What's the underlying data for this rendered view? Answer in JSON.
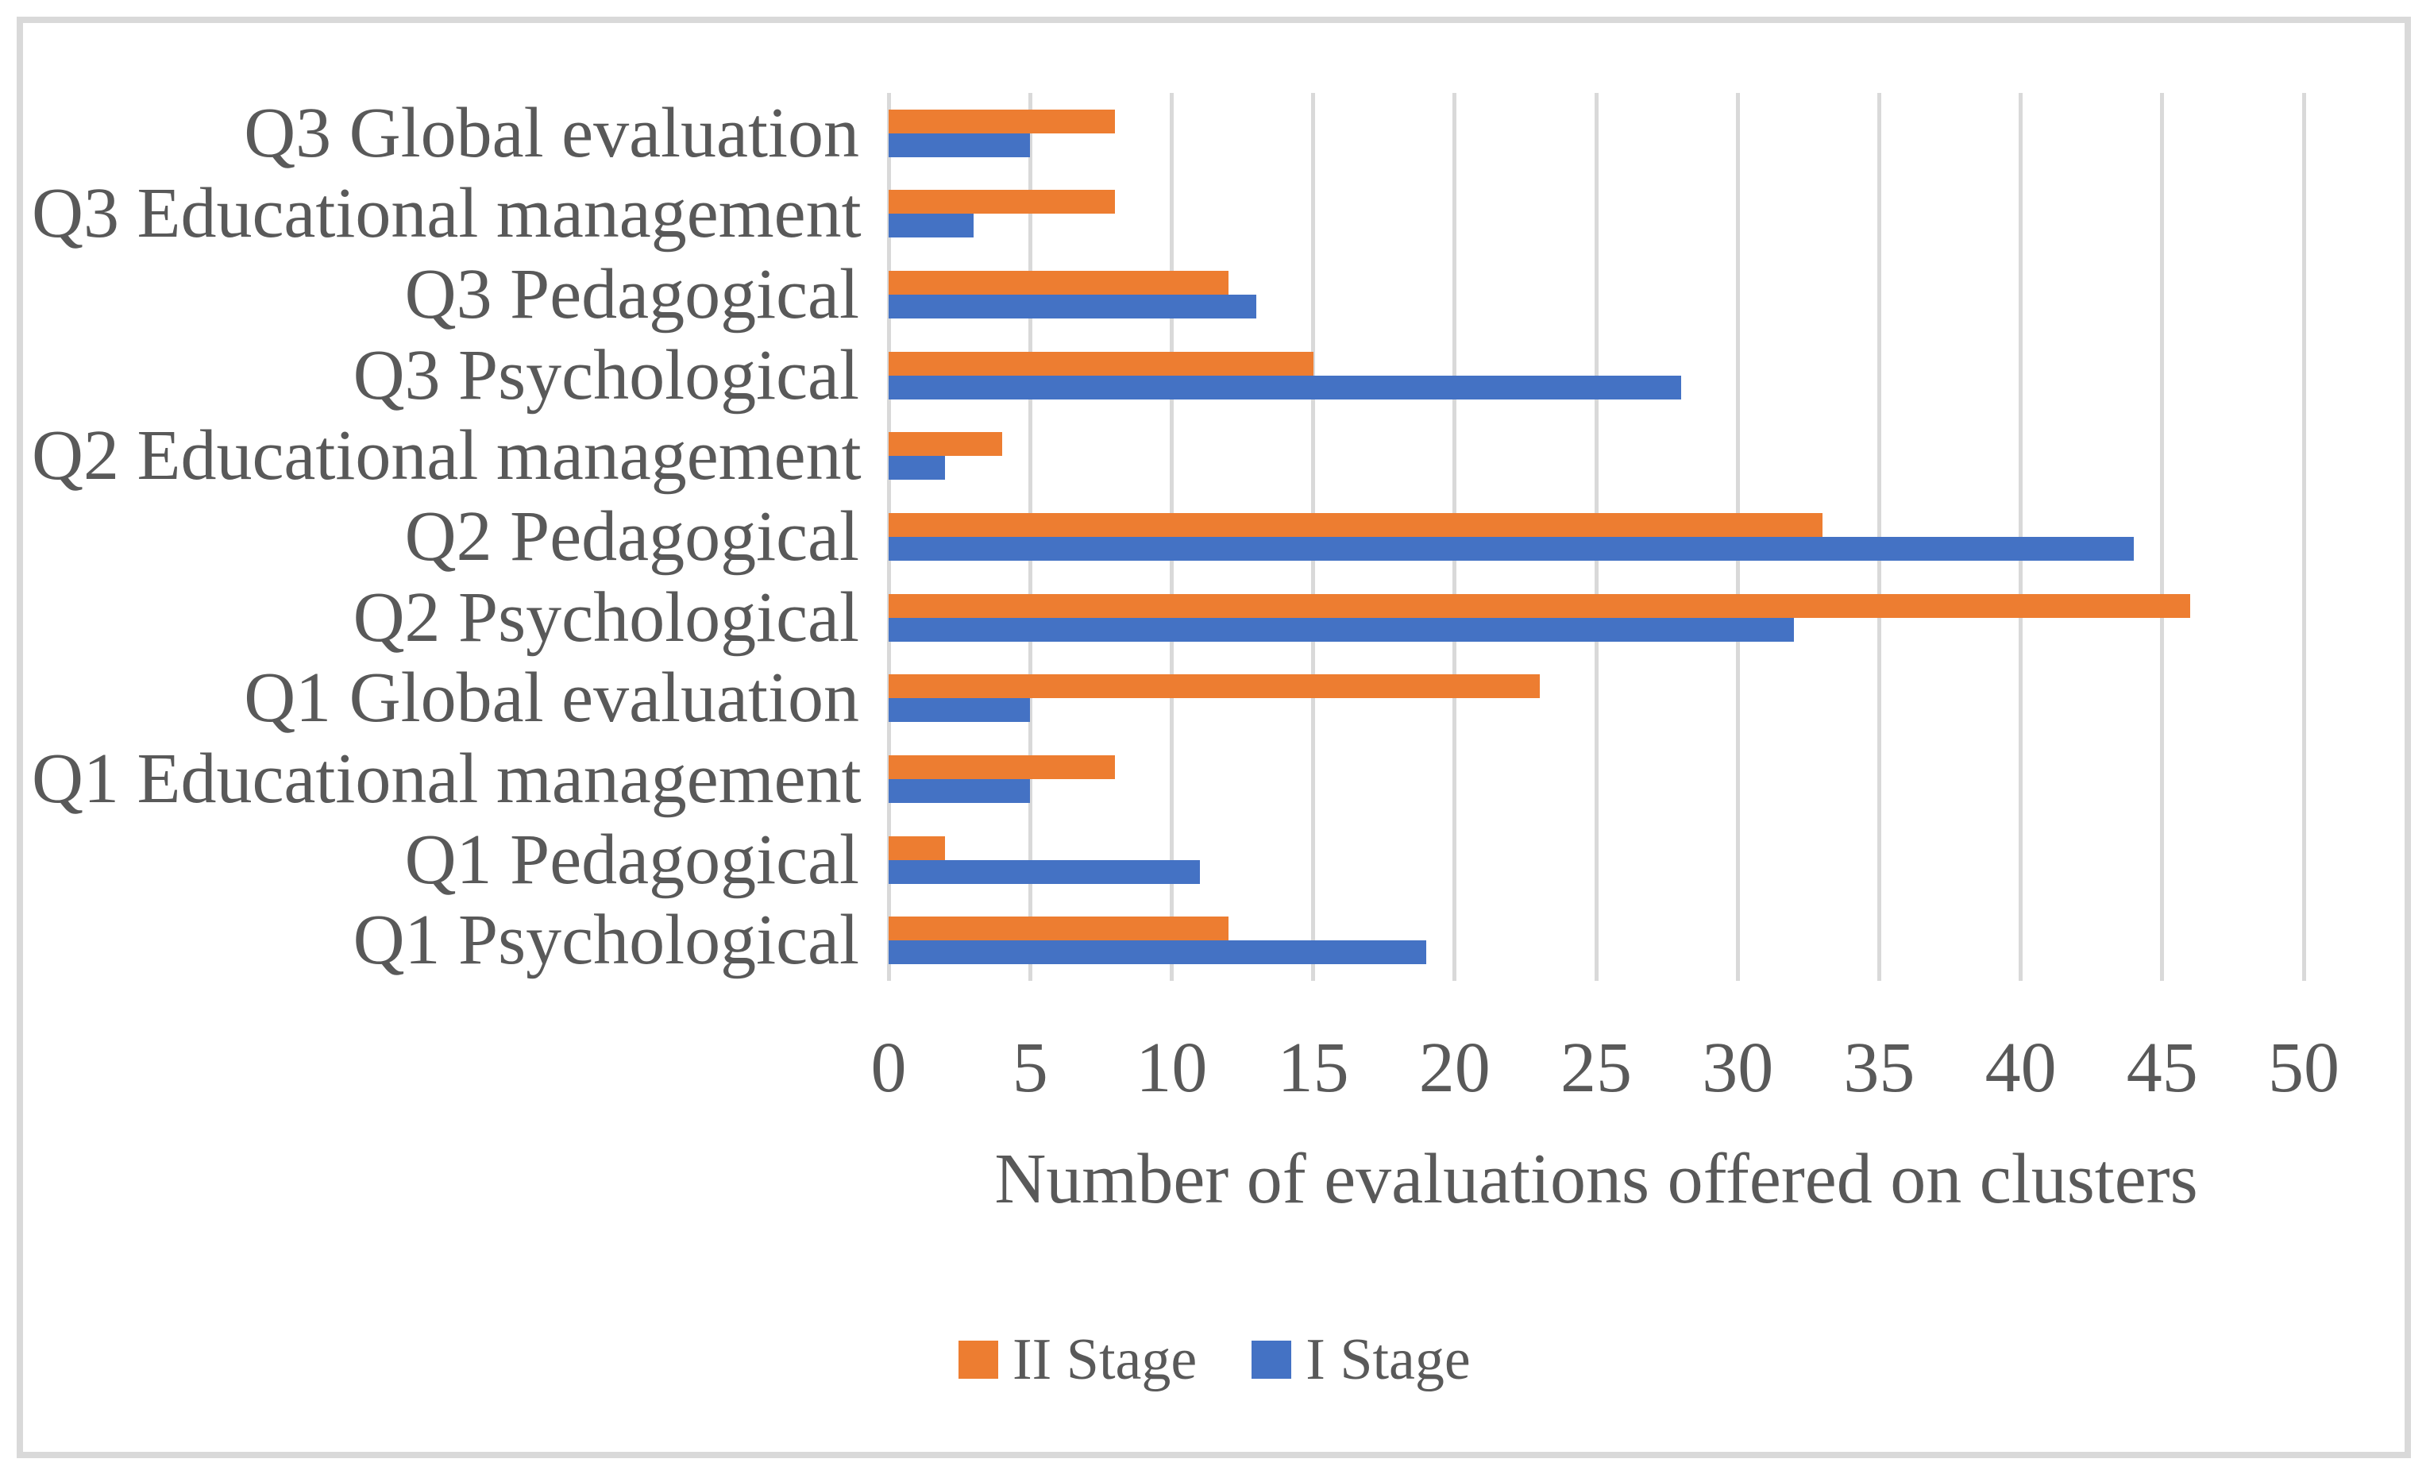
{
  "chart_data": {
    "type": "bar",
    "orientation": "horizontal",
    "title": "",
    "xlabel": "Number of evaluations offered on clusters",
    "ylabel": "",
    "categories": [
      "Q3 Global evaluation",
      "Q3 Educational management",
      "Q3 Pedagogical",
      "Q3 Psychological",
      "Q2 Educational management",
      "Q2 Pedagogical",
      "Q2 Psychological",
      "Q1 Global evaluation",
      "Q1 Educational management",
      "Q1 Pedagogical",
      "Q1 Psychological"
    ],
    "series": [
      {
        "name": "II Stage",
        "color": "#ED7D31",
        "values": [
          8,
          8,
          12,
          15,
          4,
          33,
          46,
          23,
          8,
          2,
          12
        ]
      },
      {
        "name": "I Stage",
        "color": "#4472C4",
        "values": [
          5,
          3,
          13,
          28,
          2,
          44,
          32,
          5,
          5,
          11,
          19
        ]
      }
    ],
    "x_ticks": [
      0,
      5,
      10,
      15,
      20,
      25,
      30,
      35,
      40,
      45,
      50
    ],
    "xlim": [
      0,
      50
    ],
    "grid": "vertical",
    "legend_position": "bottom"
  },
  "styles": {
    "background": "#FFFFFF",
    "frame_color": "#D9D9D9",
    "grid_color": "#D9D9D9",
    "text_color": "#595959"
  }
}
